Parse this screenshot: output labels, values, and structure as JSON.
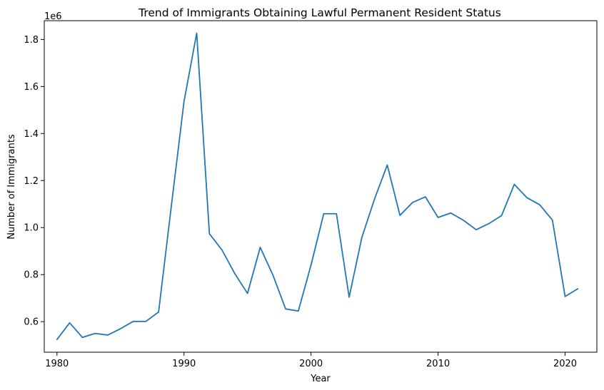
{
  "chart_data": {
    "type": "line",
    "title": "Trend of Immigrants Obtaining Lawful Permanent Resident Status",
    "xlabel": "Year",
    "ylabel": "Number of Immigrants",
    "offset_label": "1e6",
    "xlim": [
      1979,
      2022.5
    ],
    "ylim": [
      0.47,
      1.88
    ],
    "xticks": [
      1980,
      1990,
      2000,
      2010,
      2020
    ],
    "yticks": [
      0.6,
      0.8,
      1.0,
      1.2,
      1.4,
      1.6,
      1.8
    ],
    "ytick_labels": [
      "0.6",
      "0.8",
      "1.0",
      "1.2",
      "1.4",
      "1.6",
      "1.8"
    ],
    "grid": false,
    "line_color": "#1f77b4",
    "series": [
      {
        "x": [
          1980,
          1981,
          1982,
          1983,
          1984,
          1985,
          1986,
          1987,
          1988,
          1989,
          1990,
          1991,
          1992,
          1993,
          1994,
          1995,
          1996,
          1997,
          1998,
          1999,
          2000,
          2001,
          2002,
          2003,
          2004,
          2005,
          2006,
          2007,
          2008,
          2009,
          2010,
          2011,
          2012,
          2013,
          2014,
          2015,
          2016,
          2017,
          2018,
          2019,
          2020,
          2021
        ],
        "values": [
          0.524,
          0.595,
          0.533,
          0.55,
          0.543,
          0.57,
          0.601,
          0.601,
          0.641,
          1.09,
          1.536,
          1.827,
          0.974,
          0.904,
          0.804,
          0.72,
          0.916,
          0.798,
          0.654,
          0.645,
          0.841,
          1.059,
          1.059,
          0.704,
          0.958,
          1.122,
          1.266,
          1.052,
          1.107,
          1.131,
          1.043,
          1.062,
          1.031,
          0.991,
          1.017,
          1.051,
          1.184,
          1.127,
          1.097,
          1.032,
          0.707,
          0.74
        ]
      }
    ]
  }
}
